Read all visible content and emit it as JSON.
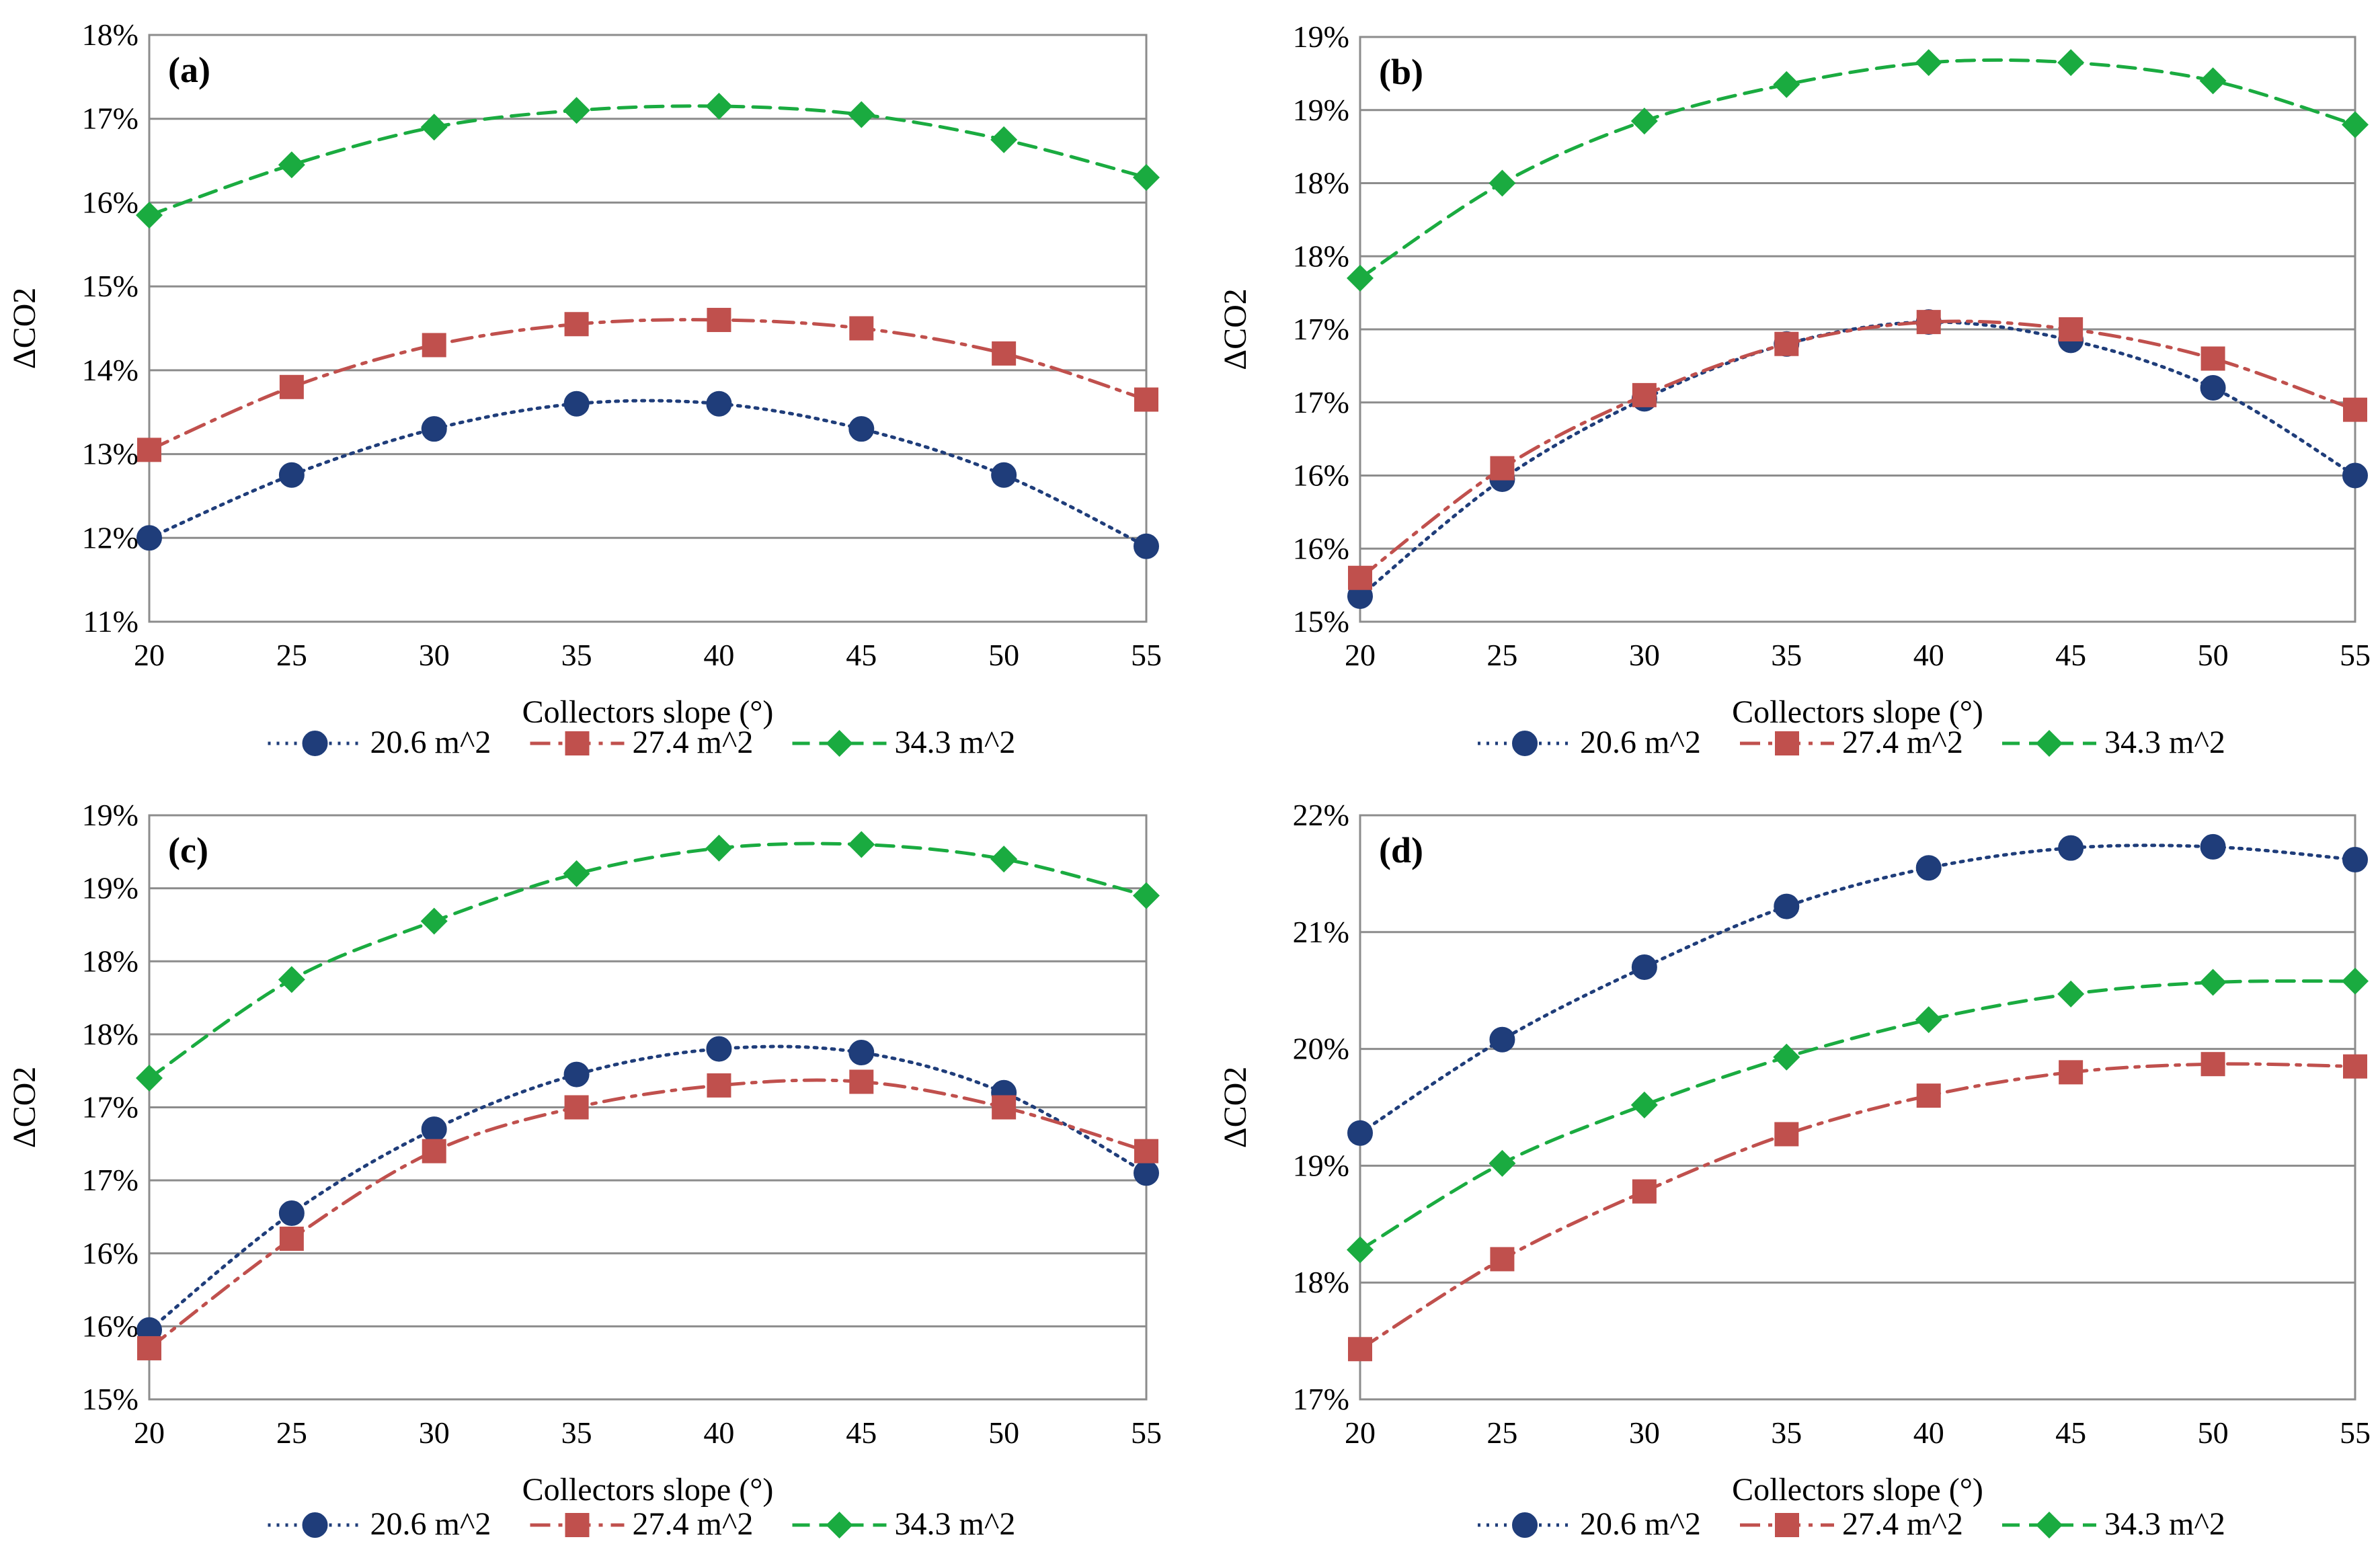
{
  "chart_data": [
    {
      "type": "line",
      "panel_label": "(a)",
      "xlabel": "Collectors slope (°)",
      "ylabel": "ΔCO2",
      "x": [
        20,
        25,
        30,
        35,
        40,
        45,
        50,
        55
      ],
      "y_ticks": [
        "11%",
        "12%",
        "13%",
        "14%",
        "15%",
        "16%",
        "17%",
        "18%"
      ],
      "ylim": [
        11,
        18
      ],
      "grid": true,
      "legend": "bottom",
      "series": [
        {
          "name": "20.6 m^2",
          "values": [
            12.0,
            12.75,
            13.3,
            13.6,
            13.6,
            13.3,
            12.75,
            11.9
          ]
        },
        {
          "name": "27.4 m^2",
          "values": [
            13.05,
            13.8,
            14.3,
            14.55,
            14.6,
            14.5,
            14.2,
            13.65
          ]
        },
        {
          "name": "34.3 m^2",
          "values": [
            15.85,
            16.45,
            16.9,
            17.1,
            17.15,
            17.05,
            16.75,
            16.3
          ]
        }
      ]
    },
    {
      "type": "line",
      "panel_label": "(b)",
      "xlabel": "Collectors slope (°)",
      "ylabel": "ΔCO2",
      "x": [
        20,
        25,
        30,
        35,
        40,
        45,
        50,
        55
      ],
      "y_ticks": [
        "15%",
        "16%",
        "16%",
        "17%",
        "17%",
        "18%",
        "18%",
        "19%",
        "19%"
      ],
      "ylim": [
        0,
        8
      ],
      "grid": true,
      "legend": "bottom",
      "series": [
        {
          "name": "20.6 m^2",
          "values": [
            0.35,
            1.95,
            3.05,
            3.8,
            4.1,
            3.85,
            3.2,
            2.0
          ]
        },
        {
          "name": "27.4 m^2",
          "values": [
            0.6,
            2.1,
            3.1,
            3.8,
            4.1,
            4.0,
            3.6,
            2.9
          ]
        },
        {
          "name": "34.3 m^2",
          "values": [
            4.7,
            6.0,
            6.85,
            7.35,
            7.65,
            7.65,
            7.4,
            6.8
          ]
        }
      ]
    },
    {
      "type": "line",
      "panel_label": "(c)",
      "xlabel": "Collectors slope (°)",
      "ylabel": "ΔCO2",
      "x": [
        20,
        25,
        30,
        35,
        40,
        45,
        50,
        55
      ],
      "y_ticks": [
        "15%",
        "16%",
        "16%",
        "17%",
        "17%",
        "18%",
        "18%",
        "19%",
        "19%"
      ],
      "ylim": [
        0,
        8
      ],
      "grid": true,
      "legend": "bottom",
      "series": [
        {
          "name": "20.6 m^2",
          "values": [
            0.95,
            2.55,
            3.7,
            4.45,
            4.8,
            4.75,
            4.2,
            3.1
          ]
        },
        {
          "name": "27.4 m^2",
          "values": [
            0.7,
            2.2,
            3.4,
            4.0,
            4.3,
            4.35,
            4.0,
            3.4
          ]
        },
        {
          "name": "34.3 m^2",
          "values": [
            4.4,
            5.75,
            6.55,
            7.2,
            7.55,
            7.6,
            7.4,
            6.9
          ]
        }
      ]
    },
    {
      "type": "line",
      "panel_label": "(d)",
      "xlabel": "Collectors slope (°)",
      "ylabel": "ΔCO2",
      "x": [
        20,
        25,
        30,
        35,
        40,
        45,
        50,
        55
      ],
      "y_ticks": [
        "17%",
        "18%",
        "19%",
        "20%",
        "21%",
        "22%"
      ],
      "ylim": [
        17,
        22
      ],
      "grid": true,
      "legend": "bottom",
      "series": [
        {
          "name": "20.6 m^2",
          "values": [
            19.28,
            20.08,
            20.7,
            21.22,
            21.55,
            21.72,
            21.73,
            21.62
          ]
        },
        {
          "name": "27.4 m^2",
          "values": [
            17.43,
            18.2,
            18.78,
            19.27,
            19.6,
            19.8,
            19.87,
            19.85
          ]
        },
        {
          "name": "34.3 m^2",
          "values": [
            18.28,
            19.02,
            19.52,
            19.93,
            20.25,
            20.47,
            20.57,
            20.58
          ]
        }
      ]
    }
  ],
  "series_styles": {
    "20.6 m^2": {
      "color": "#1f3d7a",
      "marker": "circle",
      "dash": "dotted"
    },
    "27.4 m^2": {
      "color": "#c0504d",
      "marker": "square",
      "dash": "dash-dot"
    },
    "34.3 m^2": {
      "color": "#1aab40",
      "marker": "diamond",
      "dash": "dashed"
    }
  }
}
